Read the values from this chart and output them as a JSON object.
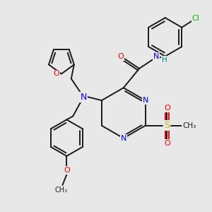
{
  "bg_color": "#e8e8e8",
  "bond_color": "#1a1a1a",
  "N_color": "#0000ee",
  "O_color": "#ee0000",
  "Cl_color": "#00bb00",
  "S_color": "#bbbb00",
  "lw": 1.4,
  "xlim": [
    0,
    6.0
  ],
  "ylim": [
    0,
    6.0
  ]
}
